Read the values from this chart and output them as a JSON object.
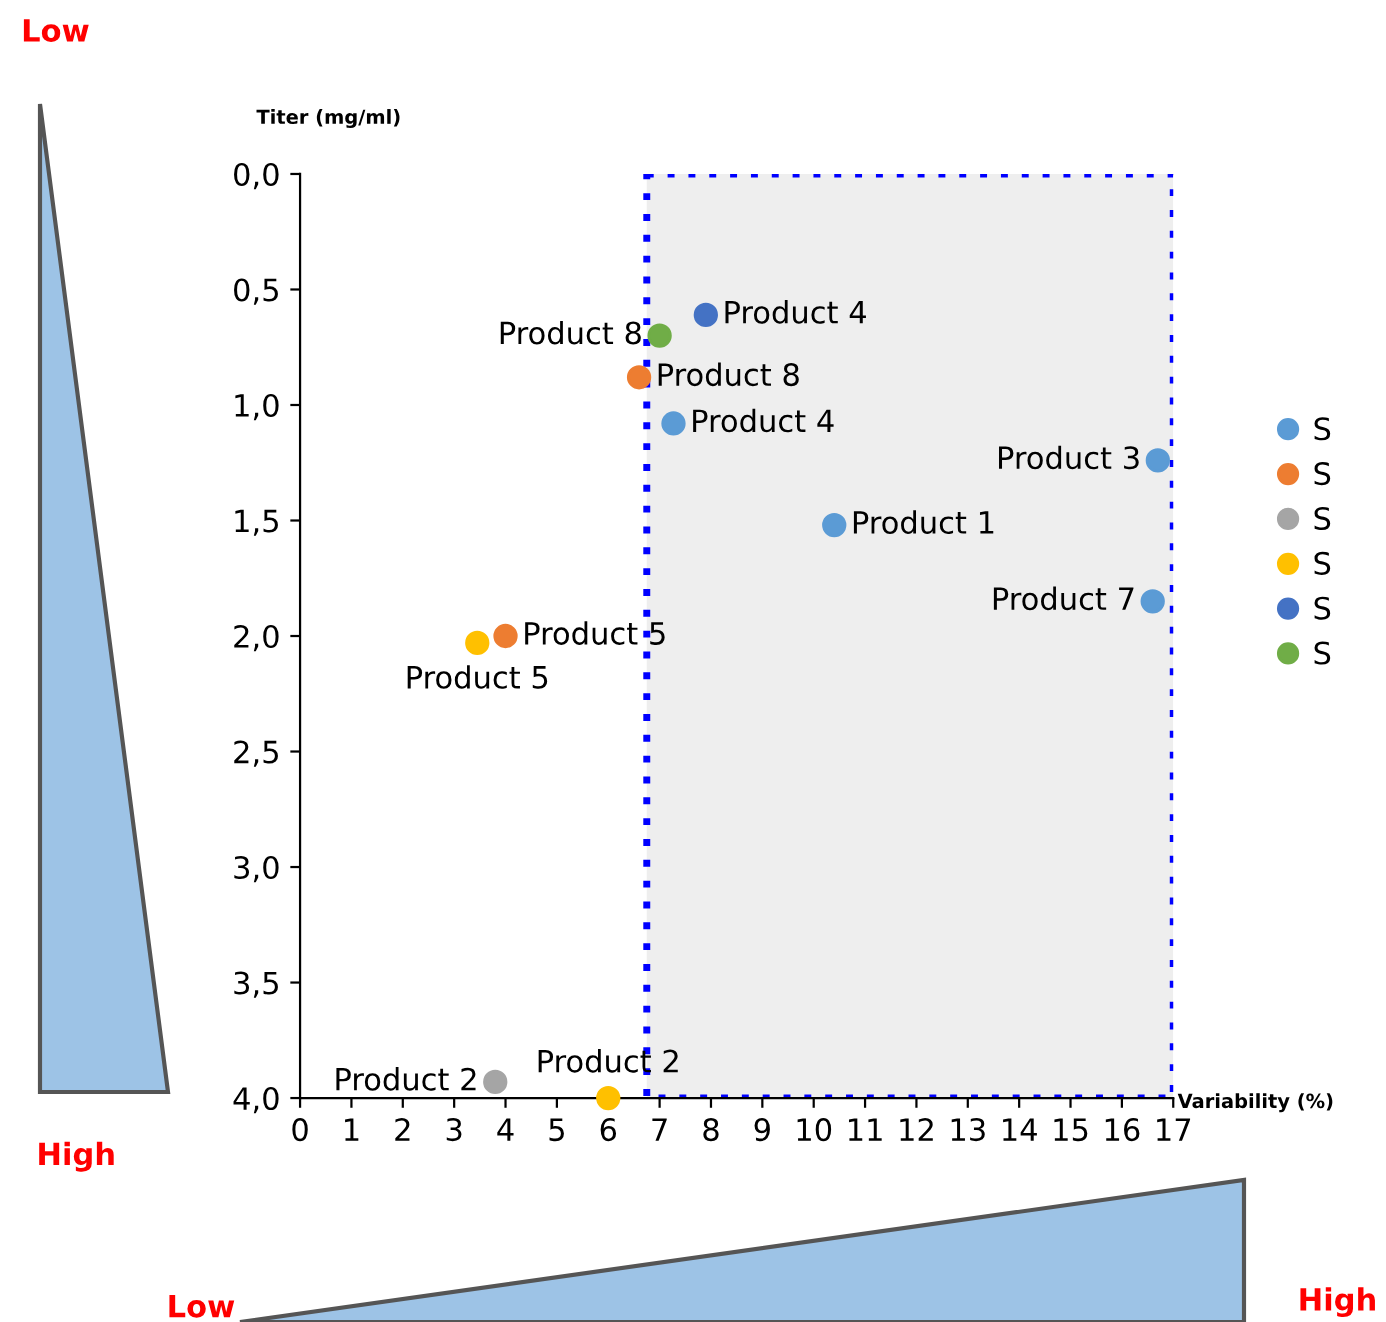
{
  "chart_data": {
    "type": "scatter",
    "xlabel": "Variability (%)",
    "ylabel": "Titer (mg/ml)",
    "xlim": [
      0,
      17
    ],
    "ylim": [
      4.0,
      0.0
    ],
    "xticks": [
      0,
      1,
      2,
      3,
      4,
      5,
      6,
      7,
      8,
      9,
      10,
      11,
      12,
      13,
      14,
      15,
      16,
      17
    ],
    "yticks": [
      {
        "value": 0.0,
        "label": "0,0"
      },
      {
        "value": 0.5,
        "label": "0,5"
      },
      {
        "value": 1.0,
        "label": "1,0"
      },
      {
        "value": 1.5,
        "label": "1,5"
      },
      {
        "value": 2.0,
        "label": "2,0"
      },
      {
        "value": 2.5,
        "label": "2,5"
      },
      {
        "value": 3.0,
        "label": "3,0"
      },
      {
        "value": 3.5,
        "label": "3,5"
      },
      {
        "value": 4.0,
        "label": "4,0"
      }
    ],
    "series": [
      {
        "name": "S",
        "color": "#5b9bd5",
        "x": [
          7.27,
          10.4,
          16.7,
          16.6
        ],
        "values": [
          1.08,
          1.52,
          1.24,
          1.85
        ]
      },
      {
        "name": "S",
        "color": "#ed7d31",
        "x": [
          6.6,
          4.0
        ],
        "values": [
          0.88,
          2.0
        ]
      },
      {
        "name": "S",
        "color": "#a5a5a5",
        "x": [
          3.8
        ],
        "values": [
          3.93
        ]
      },
      {
        "name": "S",
        "color": "#ffc000",
        "x": [
          3.45,
          6.0
        ],
        "values": [
          2.03,
          4.0
        ]
      },
      {
        "name": "S",
        "color": "#4472c4",
        "x": [
          7.9
        ],
        "values": [
          0.61
        ]
      },
      {
        "name": "S",
        "color": "#70ad47",
        "x": [
          7.0
        ],
        "values": [
          0.7
        ]
      }
    ],
    "annotations": [
      {
        "text": "Product 4",
        "x": 7.27,
        "y": 1.08
      },
      {
        "text": "Product 1",
        "x": 10.4,
        "y": 1.52
      },
      {
        "text": "Product 3",
        "x": 16.7,
        "y": 1.24
      },
      {
        "text": "Product 7",
        "x": 16.6,
        "y": 1.85
      },
      {
        "text": "Product 8",
        "x": 6.6,
        "y": 0.88
      },
      {
        "text": "Product 5",
        "x": 4.0,
        "y": 2.0
      },
      {
        "text": "Product 2",
        "x": 3.8,
        "y": 3.93
      },
      {
        "text": "Product 5",
        "x": 3.45,
        "y": 2.03
      },
      {
        "text": "Product 2",
        "x": 6.0,
        "y": 4.0
      },
      {
        "text": "Product 4",
        "x": 7.9,
        "y": 0.61
      },
      {
        "text": "Product 8",
        "x": 7.0,
        "y": 0.7
      },
      "Low",
      "High",
      "Low",
      "High"
    ],
    "bands": [
      {
        "axis": "x",
        "from": 6.75,
        "to": 17,
        "color": "#eeeeee"
      }
    ],
    "marker": "circle",
    "grid": false,
    "legend": "right"
  }
}
